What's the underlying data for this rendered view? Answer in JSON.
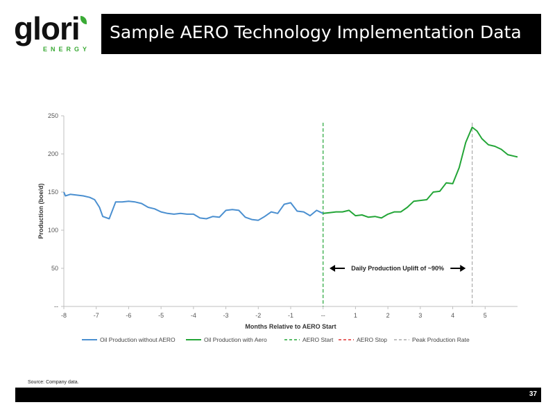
{
  "logo": {
    "word": "glori",
    "sub": "ENERGY"
  },
  "header": {
    "title": "Sample AERO Technology Implementation Data"
  },
  "source": "Source: Company data.",
  "page_number": "37",
  "colors": {
    "without": "#4a8fd0",
    "with": "#22a536",
    "aero_start": "#22a536",
    "aero_stop": "#e03030",
    "peak": "#aaaaaa",
    "accent": "#3aaa35"
  },
  "chart_data": {
    "type": "line",
    "title": "",
    "xlabel": "Months Relative to AERO Start",
    "ylabel": "Production (boe/d)",
    "xlim": [
      -8,
      6
    ],
    "ylim": [
      0,
      250
    ],
    "x_ticks": [
      {
        "value": -8,
        "label": "-8"
      },
      {
        "value": -7,
        "label": "-7"
      },
      {
        "value": -6,
        "label": "-6"
      },
      {
        "value": -5,
        "label": "-5"
      },
      {
        "value": -4,
        "label": "-4"
      },
      {
        "value": -3,
        "label": "-3"
      },
      {
        "value": -2,
        "label": "-2"
      },
      {
        "value": -1,
        "label": "-1"
      },
      {
        "value": 0,
        "label": "--"
      },
      {
        "value": 1,
        "label": "1"
      },
      {
        "value": 2,
        "label": "2"
      },
      {
        "value": 3,
        "label": "3"
      },
      {
        "value": 4,
        "label": "4"
      },
      {
        "value": 5,
        "label": "5"
      }
    ],
    "y_ticks": [
      {
        "value": 0,
        "label": "--"
      },
      {
        "value": 50,
        "label": "50"
      },
      {
        "value": 100,
        "label": "100"
      },
      {
        "value": 150,
        "label": "150"
      },
      {
        "value": 200,
        "label": "200"
      },
      {
        "value": 250,
        "label": "250"
      }
    ],
    "series": [
      {
        "name": "Oil Production without AERO",
        "x": [
          -8,
          -7.95,
          -7.8,
          -7.6,
          -7.4,
          -7.2,
          -7.05,
          -6.9,
          -6.8,
          -6.6,
          -6.4,
          -6.2,
          -6.0,
          -5.8,
          -5.6,
          -5.4,
          -5.2,
          -5.0,
          -4.8,
          -4.6,
          -4.4,
          -4.2,
          -4.0,
          -3.8,
          -3.6,
          -3.4,
          -3.2,
          -3.0,
          -2.8,
          -2.6,
          -2.4,
          -2.2,
          -2.0,
          -1.8,
          -1.6,
          -1.4,
          -1.2,
          -1.0,
          -0.8,
          -0.6,
          -0.4,
          -0.2,
          0
        ],
        "y": [
          150,
          145,
          147,
          146,
          145,
          143,
          140,
          130,
          118,
          115,
          137,
          137,
          138,
          137,
          135,
          130,
          128,
          124,
          122,
          121,
          122,
          121,
          121,
          116,
          115,
          118,
          117,
          126,
          127,
          126,
          117,
          114,
          113,
          118,
          124,
          122,
          134,
          136,
          125,
          124,
          119,
          126,
          122
        ]
      },
      {
        "name": "Oil Production with Aero",
        "x": [
          0,
          0.2,
          0.4,
          0.6,
          0.8,
          1.0,
          1.2,
          1.4,
          1.6,
          1.8,
          2.0,
          2.2,
          2.4,
          2.6,
          2.8,
          3.0,
          3.2,
          3.4,
          3.6,
          3.8,
          4.0,
          4.2,
          4.4,
          4.6,
          4.75,
          4.9,
          5.1,
          5.3,
          5.5,
          5.7,
          5.9,
          6.0
        ],
        "y": [
          122,
          123,
          124,
          124,
          126,
          119,
          120,
          117,
          118,
          116,
          121,
          124,
          124,
          130,
          138,
          139,
          140,
          150,
          151,
          162,
          161,
          182,
          215,
          235,
          230,
          220,
          212,
          210,
          206,
          199,
          197,
          196
        ]
      }
    ],
    "reference_lines": [
      {
        "name": "AERO Start",
        "x": 0,
        "style": "dashed"
      },
      {
        "name": "Peak Production Rate",
        "x": 4.6,
        "style": "dashed"
      }
    ],
    "legend": {
      "placement": "bottom",
      "entries": [
        {
          "label": "Oil Production without AERO",
          "style": "solid",
          "color": "#4a8fd0"
        },
        {
          "label": "Oil Production with Aero",
          "style": "solid",
          "color": "#22a536"
        },
        {
          "label": "AERO Start",
          "style": "dashed",
          "color": "#22a536"
        },
        {
          "label": "AERO Stop",
          "style": "dashed",
          "color": "#e03030"
        },
        {
          "label": "Peak Production Rate",
          "style": "dashed",
          "color": "#aaaaaa"
        }
      ]
    },
    "annotation": {
      "text": "Daily Production Uplift of ~90%",
      "x_from": 0.2,
      "x_to": 4.4,
      "y": 50
    },
    "grid": false
  }
}
